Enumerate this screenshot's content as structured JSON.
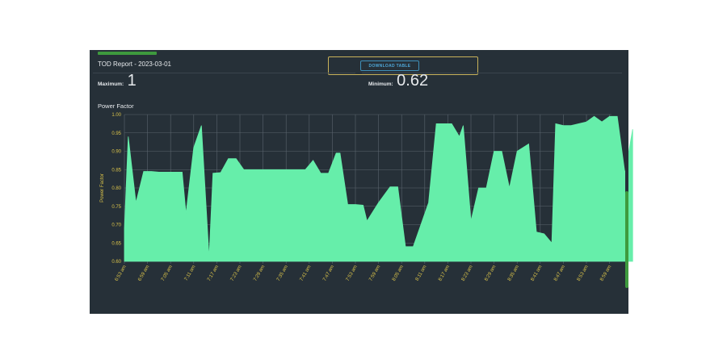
{
  "report": {
    "title": "TOD Report - 2023-03-01"
  },
  "toolbar": {
    "download_label": "DOWNLOAD TABLE"
  },
  "stats": {
    "maximum_label": "Maximum:",
    "maximum_value": "1",
    "minimum_label": "Minimum:",
    "minimum_value": "0.62"
  },
  "colors": {
    "panel": "#263038",
    "fill": "#66eeaa",
    "tick_text": "#d9c24a",
    "grid": "#5a646d",
    "accent": "#3e9a3e"
  },
  "chart_data": {
    "type": "area",
    "title": "Power Factor",
    "ylabel": "Power Factor",
    "xlabel": "",
    "ylim": [
      0.6,
      1.0
    ],
    "yticks": [
      "0.60",
      "0.65",
      "0.70",
      "0.75",
      "0.80",
      "0.85",
      "0.90",
      "0.95",
      "1.00"
    ],
    "grid": true,
    "xtick_labels": [
      "6:53 am",
      "6:59 am",
      "7:05 am",
      "7:11 am",
      "7:17 am",
      "7:23 am",
      "7:29 am",
      "7:35 am",
      "7:41 am",
      "7:47 am",
      "7:53 am",
      "7:59 am",
      "8:05 am",
      "8:11 am",
      "8:17 am",
      "8:23 am",
      "8:29 am",
      "8:35 am",
      "8:41 am",
      "8:47 am",
      "8:53 am",
      "8:59 am"
    ],
    "x_minutes_span": [
      413,
      539.5
    ],
    "series": [
      {
        "values": [
          [
            413,
            0.69
          ],
          [
            414,
            0.94
          ],
          [
            416,
            0.76
          ],
          [
            418,
            0.845
          ],
          [
            420,
            0.845
          ],
          [
            422,
            0.843
          ],
          [
            424,
            0.843
          ],
          [
            426,
            0.843
          ],
          [
            428,
            0.843
          ],
          [
            429,
            0.73
          ],
          [
            431,
            0.91
          ],
          [
            433,
            0.97
          ],
          [
            435,
            0.61
          ],
          [
            436,
            0.84
          ],
          [
            438,
            0.842
          ],
          [
            440,
            0.88
          ],
          [
            442,
            0.88
          ],
          [
            444,
            0.85
          ],
          [
            446,
            0.85
          ],
          [
            448,
            0.85
          ],
          [
            450,
            0.85
          ],
          [
            452,
            0.85
          ],
          [
            454,
            0.85
          ],
          [
            456,
            0.85
          ],
          [
            458,
            0.85
          ],
          [
            460,
            0.85
          ],
          [
            462,
            0.875
          ],
          [
            464,
            0.84
          ],
          [
            466,
            0.84
          ],
          [
            468,
            0.895
          ],
          [
            469,
            0.895
          ],
          [
            471,
            0.755
          ],
          [
            473,
            0.755
          ],
          [
            475,
            0.753
          ],
          [
            476,
            0.71
          ],
          [
            479,
            0.76
          ],
          [
            482,
            0.803
          ],
          [
            484,
            0.803
          ],
          [
            486,
            0.64
          ],
          [
            488,
            0.64
          ],
          [
            490,
            0.7
          ],
          [
            492,
            0.76
          ],
          [
            494,
            0.975
          ],
          [
            496,
            0.975
          ],
          [
            498,
            0.975
          ],
          [
            500,
            0.94
          ],
          [
            501,
            0.97
          ],
          [
            503,
            0.71
          ],
          [
            505,
            0.8
          ],
          [
            507,
            0.8
          ],
          [
            509,
            0.9
          ],
          [
            511,
            0.9
          ],
          [
            513,
            0.8
          ],
          [
            515,
            0.9
          ],
          [
            518,
            0.92
          ],
          [
            520,
            0.68
          ],
          [
            522,
            0.675
          ],
          [
            524,
            0.65
          ],
          [
            525,
            0.975
          ],
          [
            527,
            0.97
          ],
          [
            529,
            0.97
          ],
          [
            531,
            0.975
          ],
          [
            533,
            0.98
          ],
          [
            535,
            0.995
          ],
          [
            537,
            0.98
          ],
          [
            539,
            0.995
          ],
          [
            541,
            0.995
          ],
          [
            543,
            0.84
          ],
          [
            545,
            0.96
          ]
        ]
      }
    ]
  }
}
